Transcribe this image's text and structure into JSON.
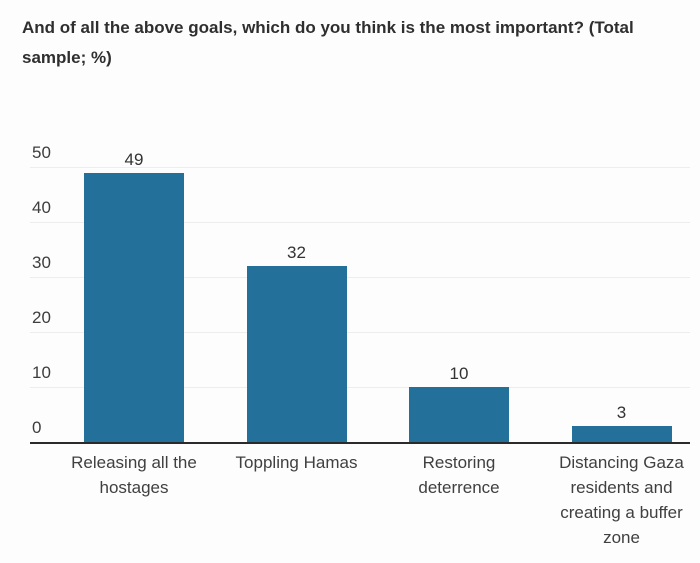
{
  "title": "And of all the above goals, which do you think is the most important? (Total\nsample; %)",
  "chart_data": {
    "type": "bar",
    "title": "And of all the above goals, which do you think is the most important? (Total sample; %)",
    "categories": [
      "Releasing all the hostages",
      "Toppling Hamas",
      "Restoring deterrence",
      "Distancing Gaza residents and creating a buffer zone"
    ],
    "category_display_lines": [
      "Releasing all the\nhostages",
      "Toppling Hamas",
      "Restoring\ndeterrence",
      "Distancing Gaza\nresidents and\ncreating a buffer\nzone"
    ],
    "values": [
      49,
      32,
      10,
      3
    ],
    "value_labels": [
      "49",
      "32",
      "10",
      "3"
    ],
    "yticks": [
      0,
      10,
      20,
      30,
      40,
      50
    ],
    "ytick_labels": [
      "0",
      "10",
      "20",
      "30",
      "40",
      "50"
    ],
    "xlabel": "",
    "ylabel": "",
    "ylim": [
      0,
      50
    ],
    "grid": "horizontal",
    "legend": "none",
    "bar_color": "#23709b",
    "axis_line_color": "#2b2b2b",
    "gridline_color": "#ededed",
    "text_color": "#3d3d3d",
    "title_color": "#2f2f2f"
  }
}
